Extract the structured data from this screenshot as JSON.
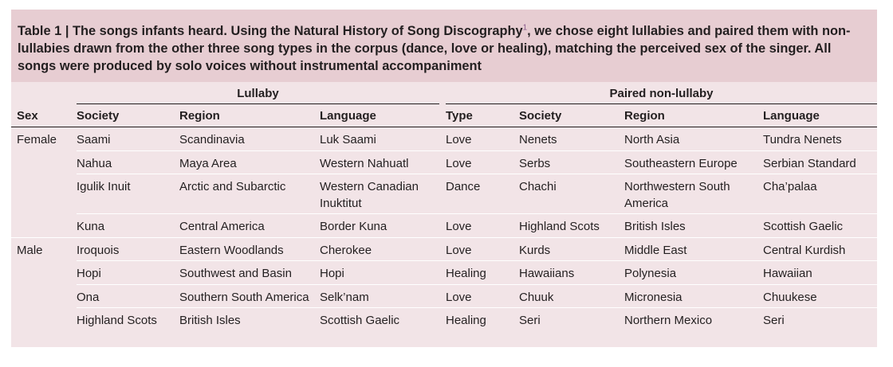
{
  "caption": {
    "label": "Table 1 |",
    "text_before_ref": "The songs infants heard. Using the Natural History of Song Discography",
    "ref": "1",
    "text_after_ref": ", we chose eight lullabies and paired them with non-lullabies drawn from the other three song types in the corpus (dance, love or healing), matching the perceived sex of the singer. All songs were produced by solo voices without instrumental accompaniment"
  },
  "groups": {
    "lullaby": "Lullaby",
    "paired": "Paired non-lullaby"
  },
  "headers": [
    "Sex",
    "Society",
    "Region",
    "Language",
    "Type",
    "Society",
    "Region",
    "Language"
  ],
  "rows": [
    [
      "Female",
      "Saami",
      "Scandinavia",
      "Luk Saami",
      "Love",
      "Nenets",
      "North Asia",
      "Tundra Nenets"
    ],
    [
      "",
      "Nahua",
      "Maya Area",
      "Western Nahuatl",
      "Love",
      "Serbs",
      "Southeastern Europe",
      "Serbian Standard"
    ],
    [
      "",
      "Igulik Inuit",
      "Arctic and Subarctic",
      "Western Canadian Inuktitut",
      "Dance",
      "Chachi",
      "Northwestern South America",
      "Cha’palaa"
    ],
    [
      "",
      "Kuna",
      "Central America",
      "Border Kuna",
      "Love",
      "Highland Scots",
      "British Isles",
      "Scottish Gaelic"
    ],
    [
      "Male",
      "Iroquois",
      "Eastern Woodlands",
      "Cherokee",
      "Love",
      "Kurds",
      "Middle East",
      "Central Kurdish"
    ],
    [
      "",
      "Hopi",
      "Southwest and Basin",
      "Hopi",
      "Healing",
      "Hawaiians",
      "Polynesia",
      "Hawaiian"
    ],
    [
      "",
      "Ona",
      "Southern South America",
      "Selk’nam",
      "Love",
      "Chuuk",
      "Micronesia",
      "Chuukese"
    ],
    [
      "",
      "Highland Scots",
      "British Isles",
      "Scottish Gaelic",
      "Healing",
      "Seri",
      "Northern Mexico",
      "Seri"
    ]
  ]
}
